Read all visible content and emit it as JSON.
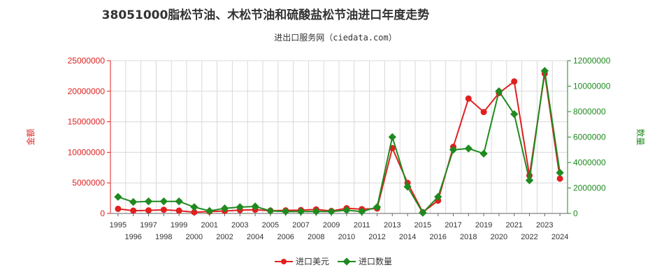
{
  "title": "38051000脂松节油、木松节油和硫酸盐松节油进口年度走势",
  "subtitle": "进出口服务网（ciedata.com）",
  "colors": {
    "amount": "#e02020",
    "quantity": "#1f8a1f",
    "grid": "#d9d9d9"
  },
  "chart_data": {
    "type": "line",
    "x": [
      "1995",
      "1996",
      "1997",
      "1998",
      "1999",
      "2000",
      "2001",
      "2002",
      "2003",
      "2004",
      "2005",
      "2006",
      "2007",
      "2008",
      "2009",
      "2010",
      "2011",
      "2012",
      "2013",
      "2014",
      "2015",
      "2016",
      "2017",
      "2018",
      "2019",
      "2020",
      "2021",
      "2022",
      "2023",
      "2024"
    ],
    "left_axis": {
      "label": "金额",
      "ylim": [
        0,
        25000000
      ],
      "ticks": [
        0,
        5000000,
        10000000,
        15000000,
        20000000,
        25000000
      ],
      "tick_labels": [
        "0",
        "5000000",
        "10000000",
        "15000000",
        "20000000",
        "25000000"
      ]
    },
    "right_axis": {
      "label": "数量",
      "ylim": [
        0,
        12000000
      ],
      "ticks": [
        0,
        2000000,
        4000000,
        6000000,
        8000000,
        10000000,
        12000000
      ],
      "tick_labels": [
        "0",
        "2000000",
        "4000000",
        "6000000",
        "8000000",
        "10000000",
        "12000000"
      ]
    },
    "series": [
      {
        "name": "进口美元",
        "axis": "left",
        "marker": "circle",
        "values": [
          750000,
          450000,
          500000,
          600000,
          450000,
          200000,
          300000,
          400000,
          550000,
          600000,
          450000,
          500000,
          550000,
          650000,
          400000,
          850000,
          700000,
          800000,
          10700000,
          5000000,
          200000,
          2100000,
          10900000,
          18800000,
          16600000,
          19700000,
          21600000,
          6200000,
          22900000,
          5700000
        ]
      },
      {
        "name": "进口数量",
        "axis": "right",
        "marker": "diamond",
        "values": [
          1300000,
          900000,
          950000,
          950000,
          950000,
          500000,
          200000,
          400000,
          500000,
          550000,
          200000,
          150000,
          150000,
          150000,
          150000,
          250000,
          150000,
          500000,
          6000000,
          2100000,
          50000,
          1300000,
          5000000,
          5100000,
          4700000,
          9600000,
          7800000,
          2600000,
          11200000,
          3200000
        ]
      }
    ],
    "grid": true,
    "legend_position": "bottom-center"
  }
}
